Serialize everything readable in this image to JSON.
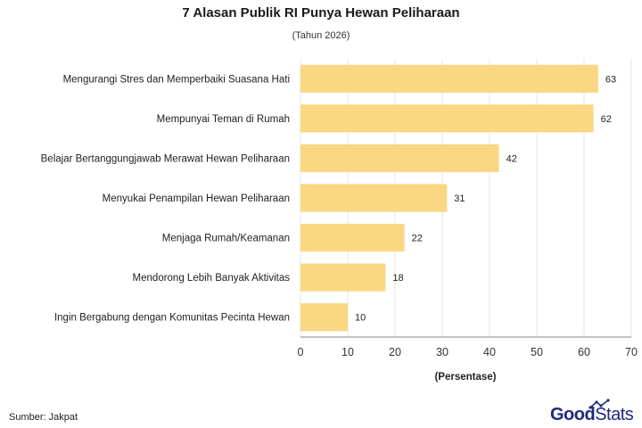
{
  "title": "7 Alasan Publik RI Punya Hewan Peliharaan",
  "subtitle": "(Tahun 2026)",
  "source": "Sumber: Jakpat",
  "brand": {
    "part1": "Good",
    "part2": "Stats"
  },
  "chart_data": {
    "type": "bar",
    "orientation": "horizontal",
    "categories": [
      "Mengurangi Stres dan Memperbaiki Suasana Hati",
      "Mempunyai Teman di Rumah",
      "Belajar Bertanggungjawab Merawat Hewan Peliharaan",
      "Menyukai Penampilan Hewan Peliharaan",
      "Menjaga Rumah/Keamanan",
      "Mendorong Lebih Banyak Aktivitas",
      "Ingin Bergabung dengan Komunitas Pecinta Hewan"
    ],
    "values": [
      63,
      62,
      42,
      31,
      22,
      18,
      10
    ],
    "xlabel": "(Persentase)",
    "ylabel": "",
    "xlim": [
      0,
      70
    ],
    "xticks": [
      0,
      10,
      20,
      30,
      40,
      50,
      60,
      70
    ],
    "grid": true,
    "bar_color": "#fad782",
    "grid_color": "#e6e6e6"
  }
}
